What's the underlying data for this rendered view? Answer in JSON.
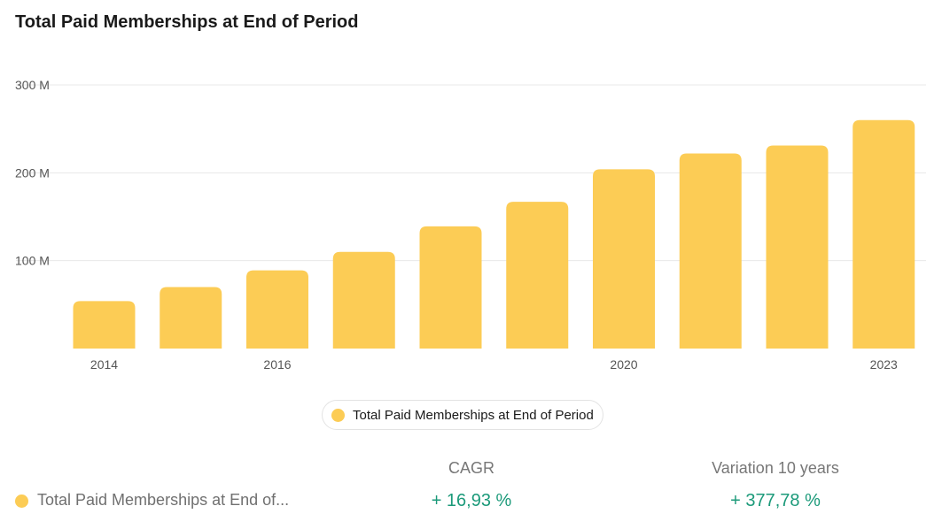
{
  "title": "Total Paid Memberships at End of Period",
  "colors": {
    "bar": "#fccc55",
    "grid": "#e8e8e8",
    "positive": "#1c9a7a"
  },
  "chart_data": {
    "type": "bar",
    "title": "Total Paid Memberships at End of Period",
    "x": [
      2014,
      2015,
      2016,
      2017,
      2018,
      2019,
      2020,
      2021,
      2022,
      2023
    ],
    "x_tick_labels_shown": [
      "2014",
      "2016",
      "2020",
      "2023"
    ],
    "series": [
      {
        "name": "Total Paid Memberships at End of Period",
        "values": [
          54,
          70,
          89,
          110,
          139,
          167,
          204,
          222,
          231,
          260
        ]
      }
    ],
    "y_ticks": [
      100,
      200,
      300
    ],
    "y_tick_labels": [
      "100 M",
      "200 M",
      "300 M"
    ],
    "ylim": [
      0,
      300
    ],
    "grid": true,
    "legend_position": "bottom"
  },
  "legend": {
    "label": "Total Paid Memberships at End of Period"
  },
  "stats": {
    "cagr_header": "CAGR",
    "variation_header": "Variation 10 years",
    "row_label": "Total Paid Memberships at End of...",
    "cagr_value": "+ 16,93 %",
    "variation_value": "+ 377,78 %"
  }
}
